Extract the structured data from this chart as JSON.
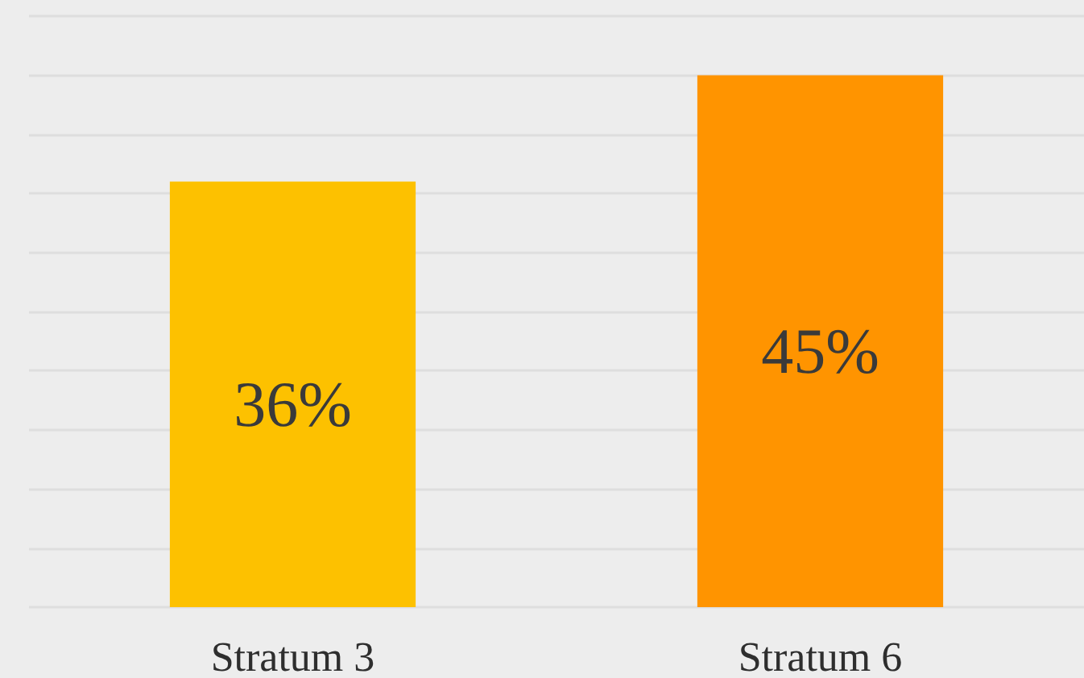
{
  "chart_data": {
    "type": "bar",
    "categories": [
      "Stratum 3",
      "Stratum 6"
    ],
    "values": [
      36,
      45
    ],
    "colors": [
      "#fdc100",
      "#ff9400"
    ],
    "value_labels": [
      "36%",
      "45%"
    ],
    "ylim": [
      0,
      50
    ],
    "yticks": [
      {
        "value": 0,
        "label": null
      },
      {
        "value": 5,
        "label": null
      },
      {
        "value": 10,
        "label": null
      },
      {
        "value": 15,
        "label": null
      },
      {
        "value": 20,
        "label": null
      },
      {
        "value": 25,
        "label": null
      },
      {
        "value": 30,
        "label": null
      },
      {
        "value": 35,
        "label": null
      },
      {
        "value": 40,
        "label": null
      },
      {
        "value": 45,
        "label": null
      },
      {
        "value": 50,
        "label": null
      }
    ],
    "grid": "y",
    "tick_labels": "x"
  }
}
